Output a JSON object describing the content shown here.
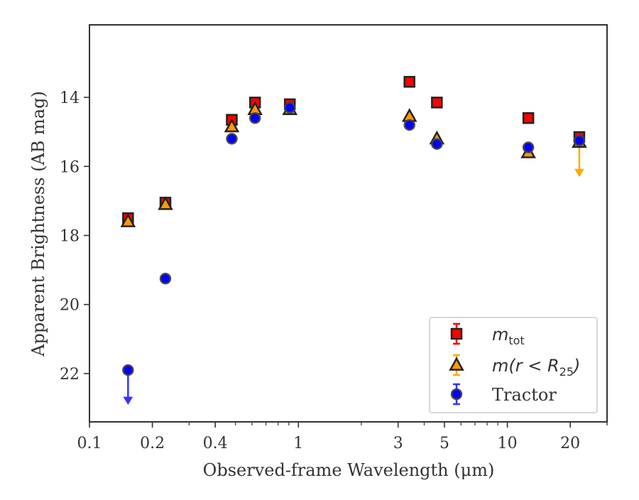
{
  "chart_data": {
    "type": "scatter",
    "title": "",
    "xlabel": "Observed-frame Wavelength (μm)",
    "ylabel": "Apparent Brightness (AB mag)",
    "x_scale": "log",
    "xlim": [
      0.1,
      30
    ],
    "ylim": [
      23.4,
      11.9
    ],
    "y_inverted": true,
    "grid": false,
    "legend_position": "lower-right",
    "x_ticks": [
      {
        "value": 0.1,
        "label": "0.1"
      },
      {
        "value": 0.2,
        "label": "0.2"
      },
      {
        "value": 0.4,
        "label": "0.4"
      },
      {
        "value": 1,
        "label": "1"
      },
      {
        "value": 3,
        "label": "3"
      },
      {
        "value": 5,
        "label": "5"
      },
      {
        "value": 10,
        "label": "10"
      },
      {
        "value": 20,
        "label": "20"
      }
    ],
    "y_ticks": [
      {
        "value": 14,
        "label": "14"
      },
      {
        "value": 16,
        "label": "16"
      },
      {
        "value": 18,
        "label": "18"
      },
      {
        "value": 20,
        "label": "20"
      },
      {
        "value": 22,
        "label": "22"
      }
    ],
    "series": [
      {
        "name": "m_tot",
        "legend_label": {
          "main": "m",
          "sub": "tot",
          "tail": ""
        },
        "marker": "square",
        "fill": "#ff0000",
        "edge": "#222222",
        "errorbar_color": "#ff0000",
        "points": [
          {
            "x": 0.153,
            "y": 17.5
          },
          {
            "x": 0.231,
            "y": 17.05
          },
          {
            "x": 0.48,
            "y": 14.65
          },
          {
            "x": 0.62,
            "y": 14.15
          },
          {
            "x": 0.91,
            "y": 14.2
          },
          {
            "x": 3.4,
            "y": 13.55
          },
          {
            "x": 4.6,
            "y": 14.15
          },
          {
            "x": 12.6,
            "y": 14.6
          },
          {
            "x": 22.1,
            "y": 15.15
          }
        ]
      },
      {
        "name": "m(r < R_25)",
        "legend_label": {
          "main": "m",
          "sub": "25",
          "pre_sub": "(r < R",
          "tail": ")"
        },
        "marker": "triangle",
        "fill": "#ff9900",
        "edge": "#222222",
        "errorbar_color": "#ffaa00",
        "points": [
          {
            "x": 0.153,
            "y": 17.6
          },
          {
            "x": 0.231,
            "y": 17.1
          },
          {
            "x": 0.48,
            "y": 14.85
          },
          {
            "x": 0.62,
            "y": 14.35
          },
          {
            "x": 0.91,
            "y": 14.35
          },
          {
            "x": 3.4,
            "y": 14.55
          },
          {
            "x": 4.6,
            "y": 15.2
          },
          {
            "x": 12.6,
            "y": 15.6
          },
          {
            "x": 22.1,
            "y": 15.3,
            "upper_limit": true
          }
        ]
      },
      {
        "name": "Tractor",
        "legend_label": {
          "main": "Tractor"
        },
        "marker": "circle",
        "fill": "#0000ff",
        "edge": "#444444",
        "errorbar_color": "#3333ff",
        "points": [
          {
            "x": 0.153,
            "y": 21.9,
            "upper_limit": true
          },
          {
            "x": 0.231,
            "y": 19.25
          },
          {
            "x": 0.48,
            "y": 15.2
          },
          {
            "x": 0.62,
            "y": 14.6
          },
          {
            "x": 0.91,
            "y": 14.3
          },
          {
            "x": 3.4,
            "y": 14.8
          },
          {
            "x": 4.6,
            "y": 15.35
          },
          {
            "x": 12.6,
            "y": 15.45
          },
          {
            "x": 22.1,
            "y": 15.25
          }
        ]
      }
    ]
  }
}
